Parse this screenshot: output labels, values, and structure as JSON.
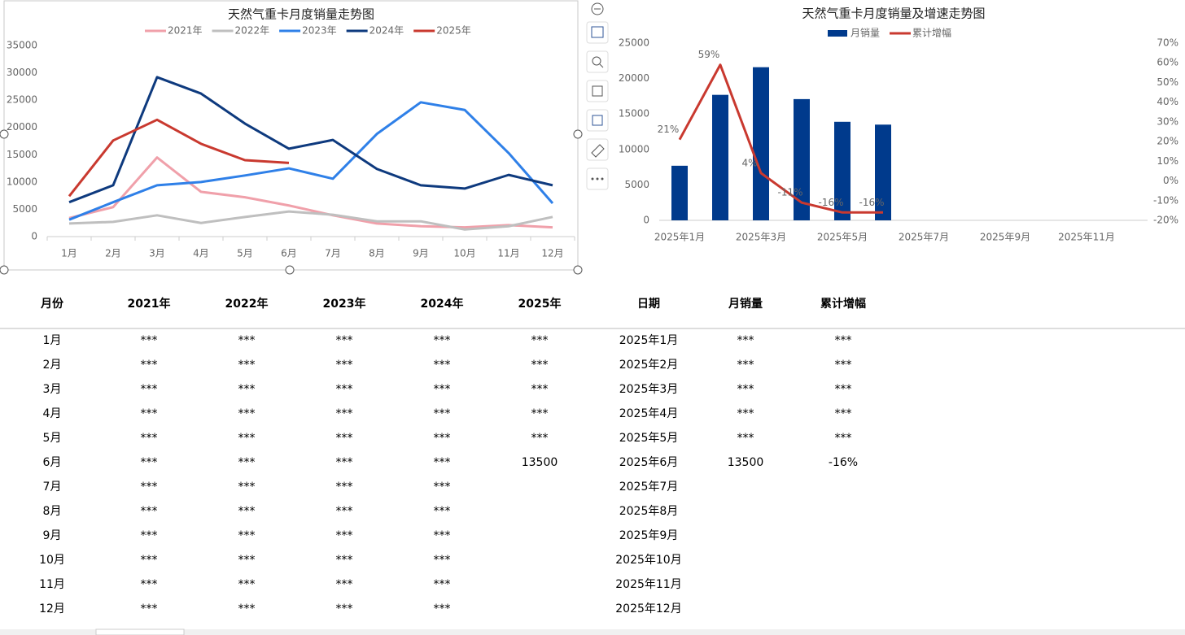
{
  "chart_data": [
    {
      "type": "line",
      "title": "天然气重卡月度销量走势图",
      "categories": [
        "1月",
        "2月",
        "3月",
        "4月",
        "5月",
        "6月",
        "7月",
        "8月",
        "9月",
        "10月",
        "11月",
        "12月"
      ],
      "ylim": [
        0,
        35000
      ],
      "yticks": [
        0,
        5000,
        10000,
        15000,
        20000,
        25000,
        30000,
        35000
      ],
      "grid": false,
      "legend": "top",
      "series": [
        {
          "name": "2021年",
          "color": "#f0a0aa",
          "values": [
            3400,
            5400,
            14500,
            8200,
            7200,
            5700,
            3900,
            2400,
            1900,
            1700,
            2100,
            1700
          ]
        },
        {
          "name": "2022年",
          "color": "#bfbfbf",
          "values": [
            2400,
            2700,
            3900,
            2500,
            3600,
            4600,
            4000,
            2800,
            2800,
            1300,
            1900,
            3600
          ]
        },
        {
          "name": "2023年",
          "color": "#2f80e8",
          "values": [
            3100,
            6300,
            9400,
            10000,
            11200,
            12500,
            10600,
            18800,
            24600,
            23200,
            15300,
            6100
          ]
        },
        {
          "name": "2024年",
          "color": "#0e3a7e",
          "values": [
            6300,
            9400,
            29200,
            26200,
            20700,
            16100,
            17700,
            12400,
            9400,
            8800,
            11300,
            9400
          ]
        },
        {
          "name": "2025年",
          "color": "#c9392f",
          "values": [
            7400,
            17600,
            21400,
            17000,
            14000,
            13500,
            null,
            null,
            null,
            null,
            null,
            null
          ]
        }
      ]
    },
    {
      "type": "bar",
      "title": "天然气重卡月度销量及增速走势图",
      "categories": [
        "2025年1月",
        null,
        "2025年3月",
        null,
        "2025年5月",
        null,
        "2025年7月",
        null,
        "2025年9月",
        null,
        "2025年11月",
        null
      ],
      "ylim": [
        0,
        25000
      ],
      "yticks": [
        0,
        5000,
        10000,
        15000,
        20000,
        25000
      ],
      "y2lim": [
        -20,
        70
      ],
      "y2ticks": [
        {
          "value": -20,
          "label": "-20%"
        },
        {
          "value": -10,
          "label": "-10%"
        },
        {
          "value": 0,
          "label": "0%"
        },
        {
          "value": 10,
          "label": "10%"
        },
        {
          "value": 20,
          "label": "20%"
        },
        {
          "value": 30,
          "label": "30%"
        },
        {
          "value": 40,
          "label": "40%"
        },
        {
          "value": 50,
          "label": "50%"
        },
        {
          "value": 60,
          "label": "60%"
        },
        {
          "value": 70,
          "label": "70%"
        }
      ],
      "legend": "top",
      "series": [
        {
          "name": "月销量",
          "type": "bar",
          "color": "#003a8c",
          "values": [
            7700,
            17700,
            21600,
            17100,
            13900,
            13500,
            null,
            null,
            null,
            null,
            null,
            null
          ]
        },
        {
          "name": "累计增幅",
          "type": "line",
          "axis": "y2",
          "color": "#c9392f",
          "values": [
            21,
            59,
            4,
            -11,
            -16,
            -16,
            null,
            null,
            null,
            null,
            null,
            null
          ],
          "value_labels": [
            "21%",
            "59%",
            "4%",
            "-11%",
            "-16%",
            "-16%",
            null,
            null,
            null,
            null,
            null,
            null
          ]
        }
      ]
    }
  ],
  "table_left": {
    "header": [
      "月份",
      "2021年",
      "2022年",
      "2023年",
      "2024年",
      "2025年"
    ],
    "rows": [
      [
        "1月",
        "***",
        "***",
        "***",
        "***",
        "***"
      ],
      [
        "2月",
        "***",
        "***",
        "***",
        "***",
        "***"
      ],
      [
        "3月",
        "***",
        "***",
        "***",
        "***",
        "***"
      ],
      [
        "4月",
        "***",
        "***",
        "***",
        "***",
        "***"
      ],
      [
        "5月",
        "***",
        "***",
        "***",
        "***",
        "***"
      ],
      [
        "6月",
        "***",
        "***",
        "***",
        "***",
        13500
      ],
      [
        "7月",
        "***",
        "***",
        "***",
        "***"
      ],
      [
        "8月",
        "***",
        "***",
        "***",
        "***"
      ],
      [
        "9月",
        "***",
        "***",
        "***",
        "***"
      ],
      [
        "10月",
        "***",
        "***",
        "***",
        "***"
      ],
      [
        "11月",
        "***",
        "***",
        "***",
        "***"
      ],
      [
        "12月",
        "***",
        "***",
        "***",
        "***"
      ]
    ]
  },
  "table_right": {
    "header": [
      "日期",
      "月销量",
      "累计增幅"
    ],
    "rows": [
      [
        "2025年1月",
        "***",
        "***"
      ],
      [
        "2025年2月",
        "***",
        "***"
      ],
      [
        "2025年3月",
        "***",
        "***"
      ],
      [
        "2025年4月",
        "***",
        "***"
      ],
      [
        "2025年5月",
        "***",
        "***"
      ],
      [
        "2025年6月",
        13500,
        "-16%"
      ],
      [
        "2025年7月"
      ],
      [
        "2025年8月"
      ],
      [
        "2025年9月"
      ],
      [
        "2025年10月"
      ],
      [
        "2025年11月"
      ],
      [
        "2025年12月"
      ]
    ]
  }
}
